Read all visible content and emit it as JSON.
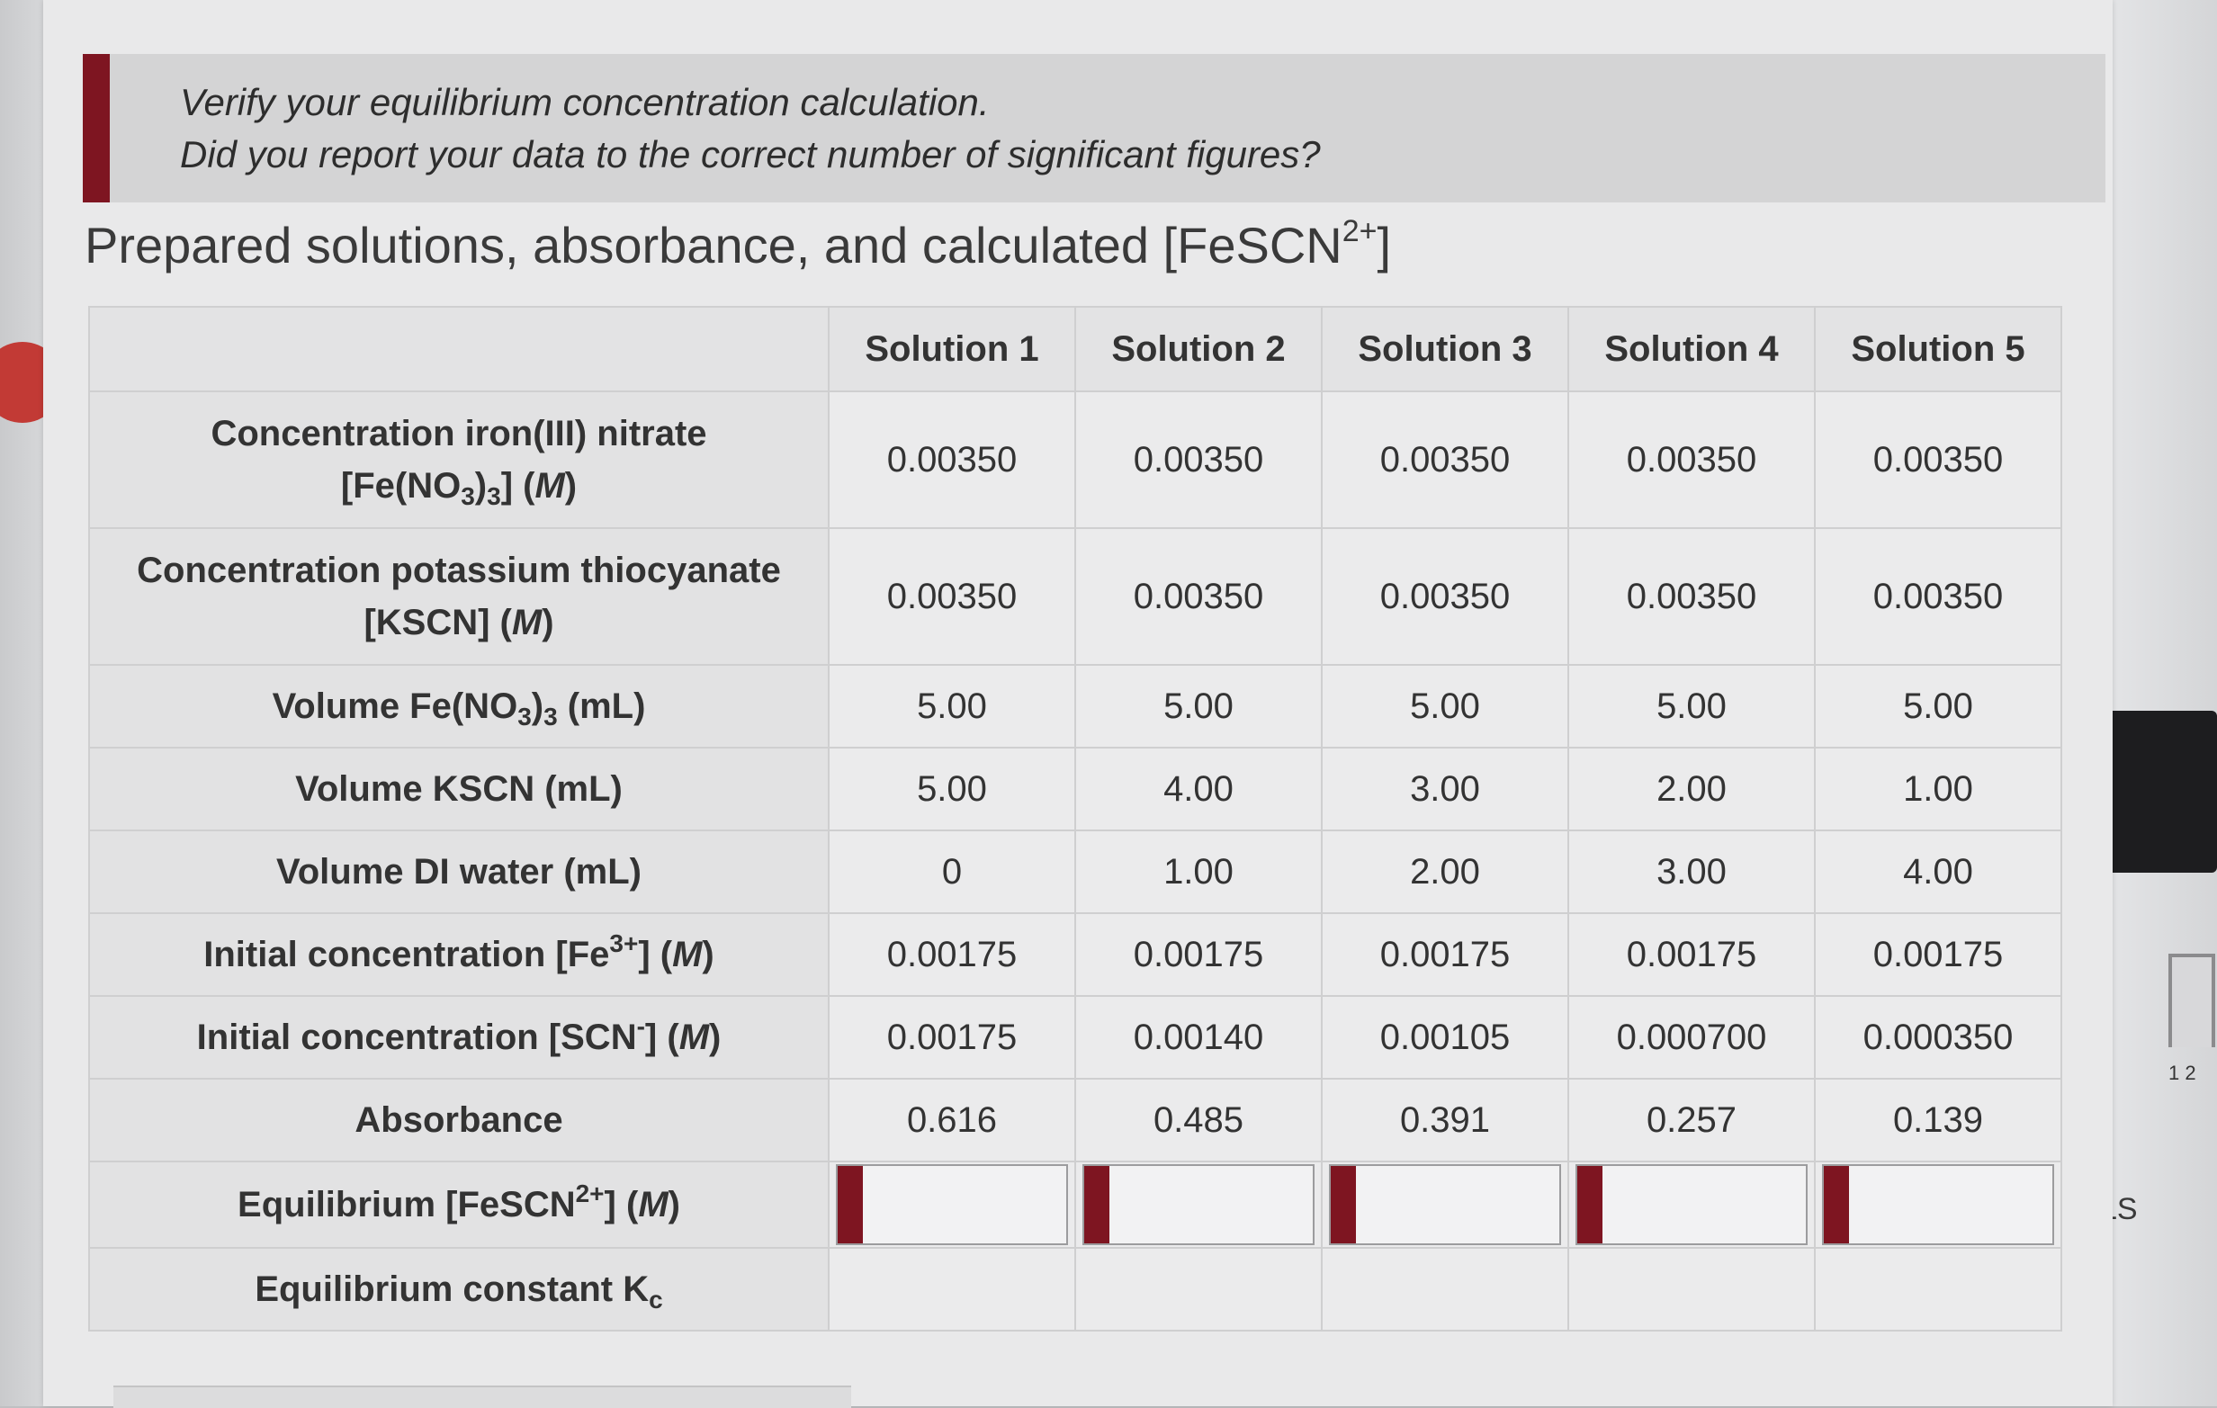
{
  "callout": {
    "line1": "Verify your equilibrium concentration calculation.",
    "line2": "Did you report your data to the correct number of significant figures?"
  },
  "title": {
    "text": "Prepared solutions, absorbance, and calculated [FeSCN",
    "sup": "2+",
    "close": "]"
  },
  "table": {
    "columns": [
      "Solution 1",
      "Solution 2",
      "Solution 3",
      "Solution 4",
      "Solution 5"
    ],
    "rows": {
      "conc_fe": {
        "label_line1": "Concentration iron(III) nitrate",
        "label_a": "[Fe(NO",
        "label_sub1": "3",
        "label_b": ")",
        "label_sub2": "3",
        "label_c": "] (",
        "label_unit": "M",
        "label_d": ")",
        "values": [
          "0.00350",
          "0.00350",
          "0.00350",
          "0.00350",
          "0.00350"
        ]
      },
      "conc_kscn": {
        "label_line1": "Concentration potassium thiocyanate",
        "label_a": "[KSCN] (",
        "label_unit": "M",
        "label_d": ")",
        "values": [
          "0.00350",
          "0.00350",
          "0.00350",
          "0.00350",
          "0.00350"
        ]
      },
      "vol_fe": {
        "label_a": "Volume Fe(NO",
        "label_sub1": "3",
        "label_b": ")",
        "label_sub2": "3",
        "label_c": " (mL)",
        "values": [
          "5.00",
          "5.00",
          "5.00",
          "5.00",
          "5.00"
        ]
      },
      "vol_kscn": {
        "label": "Volume KSCN (mL)",
        "values": [
          "5.00",
          "4.00",
          "3.00",
          "2.00",
          "1.00"
        ]
      },
      "vol_water": {
        "label": "Volume DI water (mL)",
        "values": [
          "0",
          "1.00",
          "2.00",
          "3.00",
          "4.00"
        ]
      },
      "init_fe": {
        "label_a": "Initial concentration [Fe",
        "label_sup": "3+",
        "label_c": "] (",
        "label_unit": "M",
        "label_d": ")",
        "values": [
          "0.00175",
          "0.00175",
          "0.00175",
          "0.00175",
          "0.00175"
        ]
      },
      "init_scn": {
        "label_a": "Initial concentration [SCN",
        "label_sup": "-",
        "label_c": "] (",
        "label_unit": "M",
        "label_d": ")",
        "values": [
          "0.00175",
          "0.00140",
          "0.00105",
          "0.000700",
          "0.000350"
        ]
      },
      "absorbance": {
        "label": "Absorbance",
        "values": [
          "0.616",
          "0.485",
          "0.391",
          "0.257",
          "0.139"
        ]
      },
      "eq_fescn": {
        "label_a": "Equilibrium [FeSCN",
        "label_sup": "2+",
        "label_c": "] (",
        "label_unit": "M",
        "label_d": ")",
        "values": [
          "",
          "",
          "",
          "",
          ""
        ]
      },
      "kc": {
        "label_a": "Equilibrium constant K",
        "label_sub": "c"
      }
    }
  },
  "side": {
    "ls_label": "LS",
    "tube_label": "1 2"
  },
  "colors": {
    "accent": "#7e1521",
    "panel_bg": "#e9e9ea",
    "callout_bg": "#d4d4d5"
  }
}
